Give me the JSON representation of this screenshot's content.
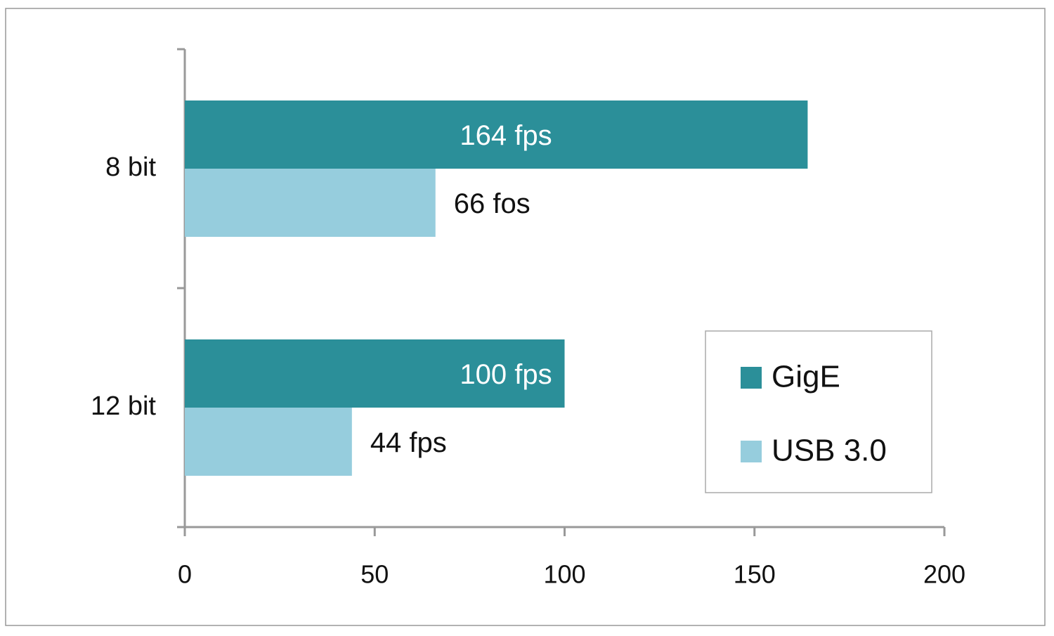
{
  "chart_data": {
    "type": "bar",
    "orientation": "horizontal",
    "categories": [
      "8 bit",
      "12 bit"
    ],
    "series": [
      {
        "name": "GigE",
        "color": "#2b8f99",
        "values": [
          164,
          100
        ],
        "value_labels": [
          "164 fps",
          "100 fps"
        ]
      },
      {
        "name": "USB 3.0",
        "color": "#96cddd",
        "values": [
          66,
          44
        ],
        "value_labels": [
          "66 fos",
          "44 fps"
        ]
      }
    ],
    "xlim": [
      0,
      200
    ],
    "xticks": [
      0,
      50,
      100,
      150,
      200
    ],
    "grid": false,
    "legend": "lower right"
  }
}
